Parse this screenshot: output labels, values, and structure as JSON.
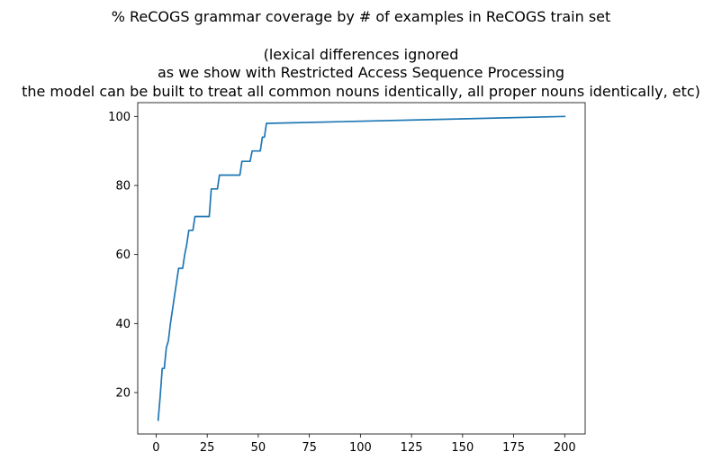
{
  "chart_data": {
    "type": "line",
    "title_lines": [
      "% ReCOGS grammar coverage by # of examples in ReCOGS train set",
      "",
      "(lexical differences ignored",
      "as we show with Restricted Access Sequence Processing",
      "the model can be built to treat all common nouns identically, all proper nouns identically, etc)"
    ],
    "xlabel": "",
    "ylabel": "",
    "xlim": [
      -9,
      210
    ],
    "ylim": [
      8,
      104
    ],
    "xticks": [
      0,
      25,
      50,
      75,
      100,
      125,
      150,
      175,
      200
    ],
    "yticks": [
      20,
      40,
      60,
      80,
      100
    ],
    "grid": false,
    "legend": false,
    "line_color": "#1f77b4",
    "series": [
      {
        "x": [
          1,
          2,
          3,
          4,
          5,
          6,
          7,
          8,
          9,
          10,
          11,
          12,
          13,
          14,
          15,
          16,
          17,
          18,
          19,
          20,
          21,
          22,
          23,
          24,
          25,
          26,
          27,
          28,
          29,
          30,
          31,
          32,
          33,
          34,
          35,
          36,
          37,
          38,
          39,
          40,
          41,
          42,
          43,
          44,
          45,
          46,
          47,
          48,
          49,
          50,
          51,
          52,
          53,
          54,
          55,
          200
        ],
        "y": [
          12,
          19,
          27,
          27,
          33,
          35,
          40,
          44,
          48,
          52,
          56,
          56,
          56,
          60,
          63,
          67,
          67,
          67,
          71,
          71,
          71,
          71,
          71,
          71,
          71,
          71,
          79,
          79,
          79,
          79,
          83,
          83,
          83,
          83,
          83,
          83,
          83,
          83,
          83,
          83,
          83,
          87,
          87,
          87,
          87,
          87,
          90,
          90,
          90,
          90,
          90,
          94,
          94,
          98,
          98,
          100
        ]
      }
    ]
  }
}
